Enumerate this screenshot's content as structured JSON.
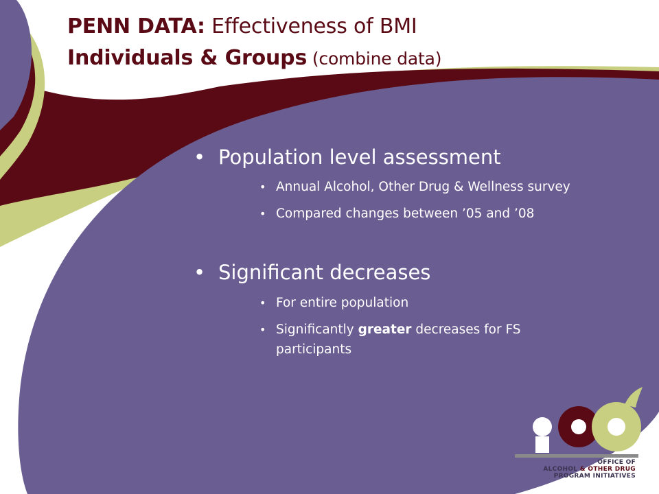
{
  "title": {
    "line1_bold": "PENN DATA:",
    "line1_rest": " Effectiveness of BMI",
    "line2_bold": "Individuals & Groups",
    "line2_rest": " (combine data)"
  },
  "bullets": [
    {
      "label": "Population level assessment",
      "sub": [
        "Annual Alcohol, Other Drug & Wellness survey",
        "Compared changes between ’05 and ’08"
      ]
    },
    {
      "label": "Significant decreases",
      "sub": [
        "For entire population"
      ]
    }
  ],
  "sub_emphasis": {
    "prefix": "Significantly ",
    "bold": "greater",
    "suffix": " decreases for FS participants"
  },
  "bullet_glyph": "•",
  "logo": {
    "line1": "OFFICE OF",
    "line2a": "ALCOHOL ",
    "line2b": "& OTHER DRUG",
    "line3": "PROGRAM INITIATIVES"
  },
  "colors": {
    "purple": "#695d92",
    "maroon": "#5a0a14",
    "olive": "#c8cf80",
    "gray": "#8a8a8a"
  }
}
